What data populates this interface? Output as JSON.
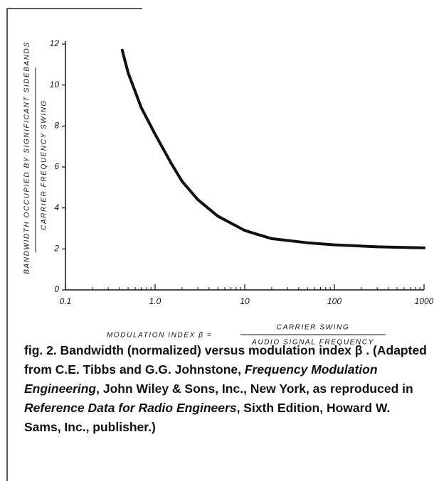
{
  "chart_data": {
    "type": "line",
    "y_label_top": "BANDWIDTH OCCUPIED BY SIGNIFICANT SIDEBANDS",
    "y_label_bottom": "CARRIER FREQUENCY SWING",
    "x_label": "MODULATION INDEX β =",
    "x_label_numerator": "CARRIER SWING",
    "x_label_denominator": "AUDIO SIGNAL FREQUENCY",
    "x": [
      0.43,
      0.5,
      0.7,
      1,
      1.5,
      2,
      3,
      5,
      10,
      20,
      50,
      100,
      300,
      1000
    ],
    "values": [
      11.7,
      10.6,
      8.9,
      7.6,
      6.2,
      5.3,
      4.4,
      3.6,
      2.9,
      2.5,
      2.3,
      2.2,
      2.1,
      2.05
    ],
    "color": "#111111",
    "xscale": "log",
    "xlim": [
      0.1,
      1000
    ],
    "xticks": [
      0.1,
      {
        "value": 1,
        "label": "1.0"
      },
      10,
      100,
      1000
    ],
    "xminor_ticks": [
      0.2,
      0.3,
      0.4,
      0.5,
      0.6,
      0.7,
      0.8,
      0.9,
      2,
      3,
      4,
      5,
      6,
      7,
      8,
      9,
      20,
      30,
      40,
      50,
      60,
      70,
      80,
      90,
      200,
      300,
      400,
      500,
      600,
      700,
      800,
      900
    ],
    "ylim": [
      0,
      12
    ],
    "yticks": [
      0,
      2,
      4,
      6,
      8,
      10,
      12
    ],
    "grid": false
  },
  "caption": [
    "fig. 2. Bandwidth (normalized) versus modulation index β . (Adapted from C.E. Tibbs and G.G. Johnstone, ",
    "Frequency Modulation Engineering",
    ", John Wiley & Sons, Inc., New York, as reproduced in ",
    "Reference Data for Radio Engineers",
    ", Sixth Edition, Howard W. Sams, Inc., publisher.)"
  ]
}
